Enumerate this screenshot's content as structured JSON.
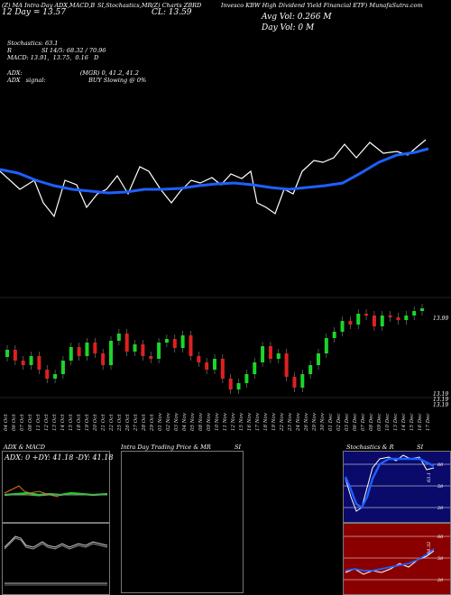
{
  "header": {
    "left": "(Z) MA Intra-Day ADX,MACD,B",
    "mid": "SI,Stochastics,MR",
    "right": "(Z) Charts ZBRD",
    "title": "Invesco KBW High Dividend Yield Financial ETF) MunafaSutra.com",
    "row2_left": "12 Day = 13.57",
    "row2_mid": "CL: 13.59",
    "avg_vol": "Avg Vol: 0.266  M",
    "day_vol": "Day Vol: 0   M"
  },
  "indicators": {
    "stochastics": "Stochastics: 63.1",
    "rsi": "R                SI 14/5: 68.32 / 70.96",
    "macd": "MACD: 13.91,  13.75,  0.16   D",
    "adx": "ADX:                               (MGR) 0, 41.2, 41.2",
    "signal": "ADX   signal:                       BUY Slowing @ 0%"
  },
  "price_axis": {
    "top": "13.99",
    "bottom1": "13.19",
    "bottom2": "13.19",
    "bottom3": "13.19"
  },
  "dates": [
    "04 Oct",
    "06 Oct",
    "07 Oct",
    "08 Oct",
    "11 Oct",
    "12 Oct",
    "13 Oct",
    "14 Oct",
    "15 Oct",
    "18 Oct",
    "19 Oct",
    "20 Oct",
    "21 Oct",
    "22 Oct",
    "25 Oct",
    "26 Oct",
    "27 Oct",
    "28 Oct",
    "29 Oct",
    "01 Nov",
    "02 Nov",
    "03 Nov",
    "04 Nov",
    "05 Nov",
    "08 Nov",
    "09 Nov",
    "10 Nov",
    "11 Nov",
    "12 Nov",
    "15 Nov",
    "16 Nov",
    "17 Nov",
    "18 Nov",
    "19 Nov",
    "22 Nov",
    "23 Nov",
    "24 Nov",
    "26 Nov",
    "29 Nov",
    "30 Nov",
    "01 Dec",
    "02 Dec",
    "03 Dec",
    "06 Dec",
    "07 Dec",
    "08 Dec",
    "09 Dec",
    "10 Dec",
    "13 Dec",
    "14 Dec",
    "15 Dec",
    "16 Dec",
    "17 Dec"
  ],
  "panels": {
    "adx_title": "ADX  & MACD",
    "adx_values": "ADX: 0  +DY: 41.18  -DY: 41.18",
    "intraday_title": "Intra  Day Trading Price  & MR",
    "intraday_si": "SI",
    "stoch_title": "Stochastics & R",
    "stoch_si": "SI"
  },
  "stoch_axis": {
    "a": "80",
    "b": "50",
    "c": "20",
    "val": "63.1"
  },
  "rsi_axis": {
    "a": "80",
    "b": "50",
    "c": "20",
    "val": "68.32"
  },
  "colors": {
    "up": "#1bd52a",
    "down": "#e02020",
    "ma": "#1e60ff",
    "stoch_bg": "#0a0a6a",
    "rsi_bg": "#8a0000"
  }
}
